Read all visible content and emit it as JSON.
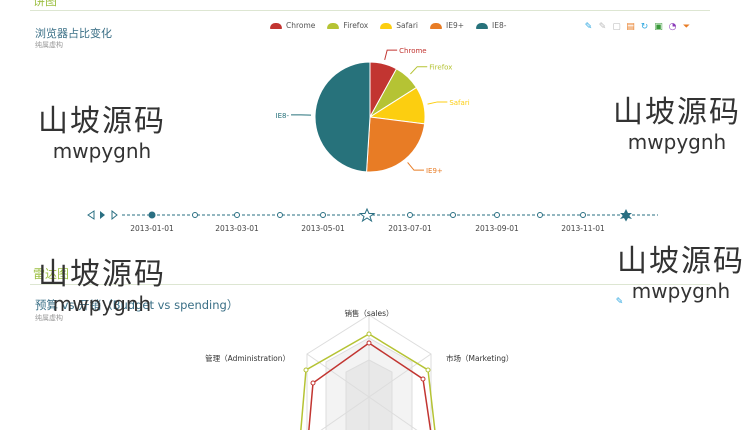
{
  "top_section": {
    "label": "饼图"
  },
  "pie_chart": {
    "title": "浏览器占比变化",
    "subtitle": "纯属虚构",
    "legend": [
      {
        "label": "Chrome",
        "color": "#c23531"
      },
      {
        "label": "Firefox",
        "color": "#b5c334"
      },
      {
        "label": "Safari",
        "color": "#fcce10"
      },
      {
        "label": "IE9+",
        "color": "#e87c25"
      },
      {
        "label": "IE8-",
        "color": "#27727b"
      }
    ],
    "toolbox": [
      "mark-icon",
      "mark-undo-icon",
      "mark-clear-icon",
      "data-view-icon",
      "restore-icon",
      "save-image-icon",
      "chart-type-icon",
      "funnel-icon"
    ],
    "slices": [
      {
        "name": "Chrome",
        "value": 8,
        "color": "#c23531"
      },
      {
        "name": "Firefox",
        "value": 8,
        "color": "#b5c334"
      },
      {
        "name": "Safari",
        "value": 11,
        "color": "#fcce10"
      },
      {
        "name": "IE9+",
        "value": 24,
        "color": "#e87c25"
      },
      {
        "name": "IE8-",
        "value": 49,
        "color": "#27727b"
      }
    ]
  },
  "timeline": {
    "labels": [
      "2013-01-01",
      "2013-03-01",
      "2013-05-01",
      "2013-07-01",
      "2013-09-01",
      "2013-11-01"
    ]
  },
  "radar_section": {
    "label": "雷达图"
  },
  "radar_chart": {
    "title": "预算 vs 开销（Budget vs spending）",
    "subtitle": "纯属虚构",
    "indicators": {
      "sales": "销售（sales）",
      "administration": "管理（Administration）",
      "marketing": "市场（Marketing）"
    },
    "series_colors": {
      "budget": "#b5c334",
      "spending": "#c23531"
    }
  },
  "watermarks": [
    {
      "main": "山坡源码",
      "sub": "mwpygnh"
    },
    {
      "main": "山坡源码",
      "sub": "mwpygnh"
    },
    {
      "main": "山坡源码",
      "sub": "mwpygnh"
    },
    {
      "main": "山坡源码",
      "sub": "mwpygnh"
    }
  ]
}
